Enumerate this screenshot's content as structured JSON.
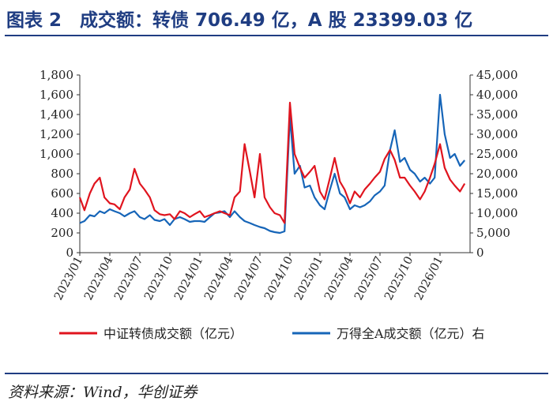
{
  "header": {
    "title": "图表 2　成交额：转债 706.49 亿，A 股 23399.03 亿"
  },
  "footer": {
    "source": "资料来源：Wind，华创证券"
  },
  "colors": {
    "accent": "#1f3d82",
    "series_cb": "#e0141e",
    "series_a": "#1665b8"
  },
  "chart_data": {
    "type": "line",
    "y_left": {
      "range": [
        0,
        1800
      ],
      "ticks": [
        "0",
        "200",
        "400",
        "600",
        "800",
        "1,000",
        "1,200",
        "1,400",
        "1,600",
        "1,800"
      ],
      "tick_values": [
        0,
        200,
        400,
        600,
        800,
        1000,
        1200,
        1400,
        1600,
        1800
      ]
    },
    "y_right": {
      "range": [
        0,
        45000
      ],
      "ticks": [
        "0",
        "5,000",
        "10,000",
        "15,000",
        "20,000",
        "25,000",
        "30,000",
        "35,000",
        "40,000",
        "45,000"
      ],
      "tick_values": [
        0,
        5000,
        10000,
        15000,
        20000,
        25000,
        30000,
        35000,
        40000,
        45000
      ]
    },
    "x_ticks": [
      "2023/01",
      "2023/04",
      "2023/07",
      "2023/10",
      "2024/01",
      "2024/04",
      "2024/07",
      "2024/10",
      "2025/01",
      "2025/04",
      "2025/07",
      "2025/10",
      "2026/01"
    ],
    "x_range": [
      "2023/01",
      "2026/04"
    ],
    "grid": false,
    "legend_position": "bottom",
    "series": [
      {
        "name": "中证转债成交额（亿元）",
        "axis": "left",
        "points": [
          [
            "2023/01",
            560
          ],
          [
            "2023/01/15",
            430
          ],
          [
            "2023/02",
            600
          ],
          [
            "2023/02/15",
            700
          ],
          [
            "2023/03",
            760
          ],
          [
            "2023/03/15",
            560
          ],
          [
            "2023/04",
            500
          ],
          [
            "2023/04/15",
            490
          ],
          [
            "2023/05",
            440
          ],
          [
            "2023/05/15",
            560
          ],
          [
            "2023/06",
            640
          ],
          [
            "2023/06/15",
            850
          ],
          [
            "2023/07",
            700
          ],
          [
            "2023/07/15",
            640
          ],
          [
            "2023/08",
            560
          ],
          [
            "2023/08/15",
            430
          ],
          [
            "2023/09",
            390
          ],
          [
            "2023/09/15",
            380
          ],
          [
            "2023/10",
            390
          ],
          [
            "2023/10/15",
            340
          ],
          [
            "2023/11",
            420
          ],
          [
            "2023/11/15",
            400
          ],
          [
            "2023/12",
            360
          ],
          [
            "2023/12/15",
            390
          ],
          [
            "2024/01",
            420
          ],
          [
            "2024/01/15",
            360
          ],
          [
            "2024/02",
            380
          ],
          [
            "2024/02/15",
            400
          ],
          [
            "2024/03",
            420
          ],
          [
            "2024/03/15",
            400
          ],
          [
            "2024/04",
            380
          ],
          [
            "2024/04/15",
            560
          ],
          [
            "2024/05",
            620
          ],
          [
            "2024/05/15",
            1100
          ],
          [
            "2024/06",
            820
          ],
          [
            "2024/06/15",
            560
          ],
          [
            "2024/07",
            1000
          ],
          [
            "2024/07/15",
            560
          ],
          [
            "2024/08",
            460
          ],
          [
            "2024/08/15",
            400
          ],
          [
            "2024/09",
            380
          ],
          [
            "2024/09/15",
            300
          ],
          [
            "2024/10",
            1520
          ],
          [
            "2024/10/15",
            1000
          ],
          [
            "2024/11",
            860
          ],
          [
            "2024/11/15",
            760
          ],
          [
            "2024/12",
            820
          ],
          [
            "2024/12/15",
            880
          ],
          [
            "2025/01",
            620
          ],
          [
            "2025/01/15",
            540
          ],
          [
            "2025/02",
            760
          ],
          [
            "2025/02/15",
            960
          ],
          [
            "2025/03",
            720
          ],
          [
            "2025/03/15",
            640
          ],
          [
            "2025/04",
            500
          ],
          [
            "2025/04/15",
            620
          ],
          [
            "2025/05",
            560
          ],
          [
            "2025/05/15",
            640
          ],
          [
            "2025/06",
            700
          ],
          [
            "2025/06/15",
            760
          ],
          [
            "2025/07",
            820
          ],
          [
            "2025/07/15",
            950
          ],
          [
            "2025/08",
            1040
          ],
          [
            "2025/08/15",
            940
          ],
          [
            "2025/09",
            760
          ],
          [
            "2025/09/15",
            760
          ],
          [
            "2025/10",
            680
          ],
          [
            "2025/10/15",
            620
          ],
          [
            "2025/11",
            540
          ],
          [
            "2025/11/15",
            620
          ],
          [
            "2025/12",
            760
          ],
          [
            "2025/12/15",
            900
          ],
          [
            "2026/01",
            1100
          ],
          [
            "2026/01/15",
            860
          ],
          [
            "2026/02",
            740
          ],
          [
            "2026/02/15",
            680
          ],
          [
            "2026/03",
            620
          ],
          [
            "2026/03/15",
            700
          ]
        ]
      },
      {
        "name": "万得全A成交额（亿元）右",
        "axis": "right",
        "points": [
          [
            "2023/01",
            7500
          ],
          [
            "2023/01/15",
            8000
          ],
          [
            "2023/02",
            9500
          ],
          [
            "2023/02/15",
            9200
          ],
          [
            "2023/03",
            10500
          ],
          [
            "2023/03/15",
            10000
          ],
          [
            "2023/04",
            11000
          ],
          [
            "2023/04/15",
            10500
          ],
          [
            "2023/05",
            10000
          ],
          [
            "2023/05/15",
            9200
          ],
          [
            "2023/06",
            10000
          ],
          [
            "2023/06/15",
            10500
          ],
          [
            "2023/07",
            9000
          ],
          [
            "2023/07/15",
            8500
          ],
          [
            "2023/08",
            9500
          ],
          [
            "2023/08/15",
            8300
          ],
          [
            "2023/09",
            8000
          ],
          [
            "2023/09/15",
            8500
          ],
          [
            "2023/10",
            7000
          ],
          [
            "2023/10/15",
            8500
          ],
          [
            "2023/11",
            9000
          ],
          [
            "2023/11/15",
            8500
          ],
          [
            "2023/12",
            7800
          ],
          [
            "2023/12/15",
            8000
          ],
          [
            "2024/01",
            8000
          ],
          [
            "2024/01/15",
            7800
          ],
          [
            "2024/02",
            9000
          ],
          [
            "2024/02/15",
            10000
          ],
          [
            "2024/03",
            10200
          ],
          [
            "2024/03/15",
            10500
          ],
          [
            "2024/04",
            9000
          ],
          [
            "2024/04/15",
            10500
          ],
          [
            "2024/05",
            9000
          ],
          [
            "2024/05/15",
            8000
          ],
          [
            "2024/06",
            7500
          ],
          [
            "2024/06/15",
            7000
          ],
          [
            "2024/07",
            6500
          ],
          [
            "2024/07/15",
            6200
          ],
          [
            "2024/08",
            5500
          ],
          [
            "2024/08/15",
            5200
          ],
          [
            "2024/09",
            5000
          ],
          [
            "2024/09/15",
            5400
          ],
          [
            "2024/10",
            34500
          ],
          [
            "2024/10/15",
            20000
          ],
          [
            "2024/11",
            22000
          ],
          [
            "2024/11/15",
            16500
          ],
          [
            "2024/12",
            17000
          ],
          [
            "2024/12/15",
            14000
          ],
          [
            "2025/01",
            12000
          ],
          [
            "2025/01/15",
            11000
          ],
          [
            "2025/02",
            16000
          ],
          [
            "2025/02/15",
            20000
          ],
          [
            "2025/03",
            15000
          ],
          [
            "2025/03/15",
            14000
          ],
          [
            "2025/04",
            11000
          ],
          [
            "2025/04/15",
            12000
          ],
          [
            "2025/05",
            11500
          ],
          [
            "2025/05/15",
            12000
          ],
          [
            "2025/06",
            13000
          ],
          [
            "2025/06/15",
            14500
          ],
          [
            "2025/07",
            15500
          ],
          [
            "2025/07/15",
            17000
          ],
          [
            "2025/08",
            26000
          ],
          [
            "2025/08/15",
            31000
          ],
          [
            "2025/09",
            23000
          ],
          [
            "2025/09/15",
            24000
          ],
          [
            "2025/10",
            21000
          ],
          [
            "2025/10/15",
            20000
          ],
          [
            "2025/11",
            18000
          ],
          [
            "2025/11/15",
            19000
          ],
          [
            "2025/12",
            17500
          ],
          [
            "2025/12/15",
            19000
          ],
          [
            "2026/01",
            40000
          ],
          [
            "2026/01/15",
            30000
          ],
          [
            "2026/02",
            24000
          ],
          [
            "2026/02/15",
            25000
          ],
          [
            "2026/03",
            22000
          ],
          [
            "2026/03/15",
            23400
          ]
        ]
      }
    ]
  }
}
